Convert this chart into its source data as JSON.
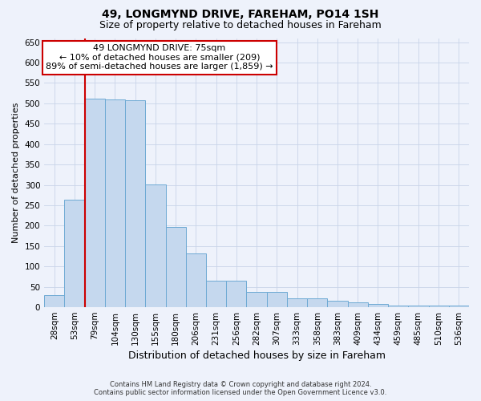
{
  "title": "49, LONGMYND DRIVE, FAREHAM, PO14 1SH",
  "subtitle": "Size of property relative to detached houses in Fareham",
  "xlabel": "Distribution of detached houses by size in Fareham",
  "ylabel": "Number of detached properties",
  "categories": [
    "28sqm",
    "53sqm",
    "79sqm",
    "104sqm",
    "130sqm",
    "155sqm",
    "180sqm",
    "206sqm",
    "231sqm",
    "256sqm",
    "282sqm",
    "307sqm",
    "333sqm",
    "358sqm",
    "383sqm",
    "409sqm",
    "434sqm",
    "459sqm",
    "485sqm",
    "510sqm",
    "536sqm"
  ],
  "values": [
    30,
    263,
    512,
    510,
    507,
    302,
    197,
    132,
    65,
    65,
    37,
    38,
    22,
    22,
    15,
    12,
    8,
    5,
    5,
    5,
    5
  ],
  "bar_color": "#c5d8ee",
  "bar_edge_color": "#6eaad4",
  "vline_color": "#cc0000",
  "vline_index": 2,
  "annotation_text": "49 LONGMYND DRIVE: 75sqm\n← 10% of detached houses are smaller (209)\n89% of semi-detached houses are larger (1,859) →",
  "annotation_facecolor": "#ffffff",
  "annotation_edgecolor": "#cc0000",
  "footer_line1": "Contains HM Land Registry data © Crown copyright and database right 2024.",
  "footer_line2": "Contains public sector information licensed under the Open Government Licence v3.0.",
  "bg_color": "#eef2fb",
  "ylim": [
    0,
    660
  ],
  "yticks": [
    0,
    50,
    100,
    150,
    200,
    250,
    300,
    350,
    400,
    450,
    500,
    550,
    600,
    650
  ],
  "title_fontsize": 10,
  "subtitle_fontsize": 9,
  "xlabel_fontsize": 9,
  "ylabel_fontsize": 8,
  "tick_fontsize": 7.5,
  "ann_fontsize": 8
}
